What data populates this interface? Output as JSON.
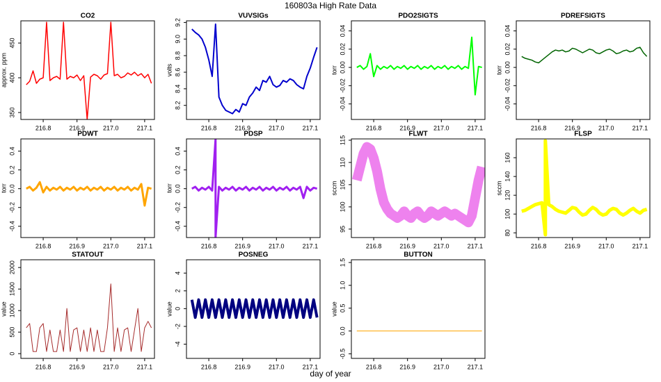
{
  "title": "160803a   High Rate Data",
  "xlabel": "day of year",
  "chart_data": [
    {
      "type": "line",
      "title": "CO2",
      "ylabel": "approx. ppm",
      "color": "#ff0000",
      "line_width": 1.5,
      "x": [
        216.75,
        216.76,
        216.77,
        216.78,
        216.79,
        216.8,
        216.81,
        216.82,
        216.83,
        216.84,
        216.85,
        216.86,
        216.87,
        216.88,
        216.89,
        216.9,
        216.91,
        216.92,
        216.93,
        216.94,
        216.95,
        216.96,
        216.97,
        216.98,
        216.99,
        217.0,
        217.01,
        217.02,
        217.03,
        217.04,
        217.05,
        217.06,
        217.07,
        217.08,
        217.09,
        217.1,
        217.11,
        217.12
      ],
      "values": [
        390,
        395,
        410,
        392,
        398,
        400,
        480,
        396,
        400,
        402,
        398,
        480,
        398,
        402,
        400,
        404,
        396,
        403,
        340,
        401,
        405,
        403,
        398,
        404,
        406,
        480,
        403,
        405,
        400,
        402,
        407,
        404,
        408,
        403,
        406,
        400,
        405,
        392
      ],
      "xlim": [
        216.734,
        217.129
      ],
      "xticks": [
        216.8,
        216.9,
        {
          "value": 217,
          "label": "217.0"
        },
        217.1
      ],
      "ylim": [
        340,
        482
      ],
      "yticks": [
        350,
        400,
        450
      ]
    },
    {
      "type": "line",
      "title": "VUVSIGs",
      "ylabel": "volts",
      "color": "#0000cd",
      "line_width": 2,
      "x": [
        216.75,
        216.76,
        216.77,
        216.78,
        216.79,
        216.8,
        216.81,
        216.82,
        216.83,
        216.84,
        216.85,
        216.86,
        216.87,
        216.88,
        216.89,
        216.9,
        216.91,
        216.92,
        216.93,
        216.94,
        216.95,
        216.96,
        216.97,
        216.98,
        216.99,
        217.0,
        217.01,
        217.02,
        217.03,
        217.04,
        217.05,
        217.06,
        217.07,
        217.08,
        217.09,
        217.1,
        217.11,
        217.12
      ],
      "values": [
        9.12,
        9.08,
        9.05,
        9.0,
        8.9,
        8.75,
        8.55,
        9.18,
        8.3,
        8.2,
        8.14,
        8.12,
        8.1,
        8.15,
        8.12,
        8.22,
        8.2,
        8.3,
        8.35,
        8.42,
        8.38,
        8.5,
        8.48,
        8.55,
        8.45,
        8.42,
        8.44,
        8.5,
        8.48,
        8.52,
        8.5,
        8.45,
        8.42,
        8.4,
        8.55,
        8.65,
        8.78,
        8.9
      ],
      "xlim": [
        216.734,
        217.129
      ],
      "xticks": [
        216.8,
        216.9,
        {
          "value": 217,
          "label": "217.0"
        },
        217.1
      ],
      "ylim": [
        8.03,
        9.22
      ],
      "yticks": [
        8.2,
        8.4,
        8.6,
        8.8,
        {
          "value": 9,
          "label": "9.0"
        },
        9.2
      ]
    },
    {
      "type": "line",
      "title": "PDO2SIGTS",
      "ylabel": "torr",
      "color": "#00ff00",
      "line_width": 2,
      "x": [
        216.75,
        216.76,
        216.77,
        216.78,
        216.79,
        216.8,
        216.81,
        216.82,
        216.83,
        216.84,
        216.85,
        216.86,
        216.87,
        216.88,
        216.89,
        216.9,
        216.91,
        216.92,
        216.93,
        216.94,
        216.95,
        216.96,
        216.97,
        216.98,
        216.99,
        217.0,
        217.01,
        217.02,
        217.03,
        217.04,
        217.05,
        217.06,
        217.07,
        217.08,
        217.09,
        217.1,
        217.11,
        217.12
      ],
      "values": [
        0,
        0.002,
        -0.002,
        0.001,
        0.015,
        -0.01,
        0.002,
        -0.002,
        0.001,
        -0.001,
        0.002,
        -0.002,
        0.001,
        -0.001,
        0.002,
        -0.002,
        0.001,
        -0.001,
        0.002,
        -0.002,
        0.001,
        -0.001,
        0.002,
        -0.002,
        0.001,
        -0.001,
        0.002,
        -0.002,
        0.001,
        -0.001,
        0.002,
        -0.002,
        0.001,
        -0.001,
        0.033,
        -0.03,
        0.001,
        0
      ],
      "xlim": [
        216.734,
        217.129
      ],
      "xticks": [
        216.8,
        216.9,
        {
          "value": 217,
          "label": "217.0"
        },
        217.1
      ],
      "ylim": [
        -0.057,
        0.051
      ],
      "yticks": [
        -0.04,
        -0.02,
        {
          "value": 0,
          "label": "0.00"
        },
        0.02,
        0.04
      ]
    },
    {
      "type": "line",
      "title": "PDREFSIGTS",
      "ylabel": "torr",
      "color": "#006400",
      "line_width": 1.5,
      "x": [
        216.75,
        216.76,
        216.77,
        216.78,
        216.79,
        216.8,
        216.81,
        216.82,
        216.83,
        216.84,
        216.85,
        216.86,
        216.87,
        216.88,
        216.89,
        216.9,
        216.91,
        216.92,
        216.93,
        216.94,
        216.95,
        216.96,
        216.97,
        216.98,
        216.99,
        217.0,
        217.01,
        217.02,
        217.03,
        217.04,
        217.05,
        217.06,
        217.07,
        217.08,
        217.09,
        217.1,
        217.11,
        217.12
      ],
      "values": [
        0.012,
        0.01,
        0.009,
        0.008,
        0.006,
        0.005,
        0.008,
        0.011,
        0.014,
        0.017,
        0.019,
        0.018,
        0.019,
        0.017,
        0.018,
        0.021,
        0.02,
        0.018,
        0.016,
        0.018,
        0.02,
        0.019,
        0.016,
        0.015,
        0.017,
        0.019,
        0.02,
        0.018,
        0.015,
        0.016,
        0.018,
        0.019,
        0.017,
        0.018,
        0.021,
        0.022,
        0.016,
        0.012
      ],
      "xlim": [
        216.734,
        217.129
      ],
      "xticks": [
        216.8,
        216.9,
        {
          "value": 217,
          "label": "217.0"
        },
        217.1
      ],
      "ylim": [
        -0.057,
        0.051
      ],
      "yticks": [
        -0.04,
        -0.02,
        {
          "value": 0,
          "label": "0.00"
        },
        0.02,
        0.04
      ]
    },
    {
      "type": "line",
      "title": "PDWT",
      "ylabel": "torr",
      "color": "#ffa500",
      "line_width": 3,
      "x": [
        216.75,
        216.76,
        216.77,
        216.78,
        216.79,
        216.8,
        216.81,
        216.82,
        216.83,
        216.84,
        216.85,
        216.86,
        216.87,
        216.88,
        216.89,
        216.9,
        216.91,
        216.92,
        216.93,
        216.94,
        216.95,
        216.96,
        216.97,
        216.98,
        216.99,
        217.0,
        217.01,
        217.02,
        217.03,
        217.04,
        217.05,
        217.06,
        217.07,
        217.08,
        217.09,
        217.1,
        217.11,
        217.12
      ],
      "values": [
        0,
        0.02,
        -0.02,
        0.01,
        0.07,
        -0.04,
        0.02,
        -0.02,
        0.01,
        -0.01,
        0.02,
        -0.02,
        0.01,
        -0.01,
        0.02,
        -0.02,
        0.01,
        -0.01,
        0.02,
        -0.02,
        0.01,
        -0.01,
        0.02,
        -0.02,
        0.01,
        -0.01,
        0.02,
        -0.02,
        0.01,
        -0.01,
        0.02,
        -0.02,
        0.01,
        -0.01,
        0.05,
        -0.18,
        0.01,
        0
      ],
      "xlim": [
        216.734,
        217.129
      ],
      "xticks": [
        216.8,
        216.9,
        {
          "value": 217,
          "label": "217.0"
        },
        217.1
      ],
      "ylim": [
        -0.52,
        0.53
      ],
      "yticks": [
        -0.4,
        -0.2,
        {
          "value": 0,
          "label": "0.0"
        },
        0.2,
        0.4
      ]
    },
    {
      "type": "line",
      "title": "PDSP",
      "ylabel": "torr",
      "color": "#a020f0",
      "line_width": 3,
      "x": [
        216.75,
        216.76,
        216.77,
        216.78,
        216.79,
        216.8,
        216.81,
        216.82,
        216.82,
        216.83,
        216.84,
        216.85,
        216.86,
        216.87,
        216.88,
        216.89,
        216.9,
        216.91,
        216.92,
        216.93,
        216.94,
        216.95,
        216.96,
        216.97,
        216.98,
        216.99,
        217.0,
        217.01,
        217.02,
        217.03,
        217.04,
        217.05,
        217.06,
        217.07,
        217.08,
        217.09,
        217.1,
        217.11,
        217.12
      ],
      "values": [
        0,
        0.02,
        -0.02,
        0.01,
        -0.01,
        0.02,
        -0.02,
        0.53,
        -0.52,
        0.02,
        -0.02,
        0.01,
        -0.01,
        0.02,
        -0.02,
        0.01,
        -0.01,
        0.02,
        -0.02,
        0.01,
        -0.01,
        0.02,
        -0.02,
        0.01,
        -0.01,
        0.02,
        -0.02,
        0.01,
        -0.01,
        0.02,
        -0.02,
        0.01,
        -0.01,
        0.02,
        -0.1,
        0.02,
        -0.02,
        0.01,
        0
      ],
      "xlim": [
        216.734,
        217.129
      ],
      "xticks": [
        216.8,
        216.9,
        {
          "value": 217,
          "label": "217.0"
        },
        217.1
      ],
      "ylim": [
        -0.52,
        0.53
      ],
      "yticks": [
        -0.4,
        -0.2,
        {
          "value": 0,
          "label": "0.0"
        },
        0.2,
        0.4
      ]
    },
    {
      "type": "line",
      "title": "FLWT",
      "ylabel": "sccm",
      "color": "#ee82ee",
      "line_width": 14,
      "x": [
        216.75,
        216.76,
        216.77,
        216.78,
        216.79,
        216.8,
        216.81,
        216.82,
        216.83,
        216.84,
        216.85,
        216.86,
        216.87,
        216.88,
        216.89,
        216.9,
        216.91,
        216.92,
        216.93,
        216.94,
        216.95,
        216.96,
        216.97,
        216.98,
        216.99,
        217.0,
        217.01,
        217.02,
        217.03,
        217.04,
        217.05,
        217.06,
        217.07,
        217.08,
        217.09,
        217.1,
        217.11,
        217.12
      ],
      "values": [
        106,
        109,
        112,
        113.5,
        113,
        111,
        108,
        104,
        101,
        99.5,
        98.5,
        98,
        97.5,
        98,
        99,
        98,
        97.5,
        98.5,
        99,
        98,
        97.5,
        98,
        99,
        98.5,
        98,
        98.5,
        99,
        98.5,
        98,
        98.5,
        98,
        97.5,
        97,
        96.5,
        98,
        102,
        106,
        109
      ],
      "xlim": [
        216.734,
        217.129
      ],
      "xticks": [
        216.8,
        216.9,
        {
          "value": 217,
          "label": "217.0"
        },
        217.1
      ],
      "ylim": [
        93.1,
        115.3
      ],
      "yticks": [
        95,
        100,
        105,
        110,
        115
      ]
    },
    {
      "type": "line",
      "title": "FLSP",
      "ylabel": "sccm",
      "color": "#ffff00",
      "line_width": 5,
      "x": [
        216.75,
        216.76,
        216.77,
        216.78,
        216.79,
        216.8,
        216.81,
        216.82,
        216.82,
        216.83,
        216.84,
        216.85,
        216.86,
        216.87,
        216.88,
        216.89,
        216.9,
        216.91,
        216.92,
        216.93,
        216.94,
        216.95,
        216.96,
        216.97,
        216.98,
        216.99,
        217.0,
        217.01,
        217.02,
        217.03,
        217.04,
        217.05,
        217.06,
        217.07,
        217.08,
        217.09,
        217.1,
        217.11,
        217.12
      ],
      "values": [
        103,
        104,
        106,
        108,
        110,
        111,
        112,
        78,
        178,
        110,
        108,
        105,
        103,
        102,
        101,
        104,
        107,
        106,
        102,
        99,
        100,
        104,
        107,
        105,
        101,
        99,
        100,
        104,
        106,
        105,
        101,
        99,
        101,
        104,
        106,
        103,
        101,
        104,
        105
      ],
      "xlim": [
        216.734,
        217.129
      ],
      "xticks": [
        216.8,
        216.9,
        {
          "value": 217,
          "label": "217.0"
        },
        217.1
      ],
      "ylim": [
        75,
        180
      ],
      "yticks": [
        80,
        100,
        120,
        140,
        160
      ]
    },
    {
      "type": "line",
      "title": "STATOUT",
      "ylabel": "value",
      "color": "#a52a2a",
      "line_width": 1,
      "x": [
        216.75,
        216.76,
        216.77,
        216.78,
        216.79,
        216.8,
        216.81,
        216.82,
        216.83,
        216.84,
        216.85,
        216.86,
        216.87,
        216.88,
        216.89,
        216.9,
        216.91,
        216.92,
        216.93,
        216.94,
        216.95,
        216.96,
        216.97,
        216.98,
        216.99,
        217.0,
        217.01,
        217.02,
        217.03,
        217.04,
        217.05,
        217.06,
        217.07,
        217.08,
        217.09,
        217.1,
        217.11,
        217.12
      ],
      "values": [
        600,
        700,
        50,
        50,
        600,
        700,
        50,
        550,
        50,
        50,
        550,
        50,
        1050,
        50,
        550,
        600,
        50,
        550,
        50,
        600,
        50,
        550,
        50,
        50,
        600,
        1620,
        50,
        600,
        50,
        550,
        600,
        50,
        550,
        1050,
        50,
        600,
        750,
        600
      ],
      "xlim": [
        216.734,
        217.129
      ],
      "xticks": [
        216.8,
        216.9,
        {
          "value": 217,
          "label": "217.0"
        },
        217.1
      ],
      "ylim": [
        -110,
        2180
      ],
      "yticks": [
        0,
        500,
        1000,
        1500,
        2000
      ]
    },
    {
      "type": "line",
      "title": "POSNEG",
      "ylabel": "value",
      "color": "#000080",
      "line_width": 4,
      "x": [
        216.75,
        216.76,
        216.77,
        216.78,
        216.79,
        216.8,
        216.81,
        216.82,
        216.83,
        216.84,
        216.85,
        216.86,
        216.87,
        216.88,
        216.89,
        216.9,
        216.91,
        216.92,
        216.93,
        216.94,
        216.95,
        216.96,
        216.97,
        216.98,
        216.99,
        217.0,
        217.01,
        217.02,
        217.03,
        217.04,
        217.05,
        217.06,
        217.07,
        217.08,
        217.09,
        217.1,
        217.11,
        217.12
      ],
      "values": [
        1,
        -1,
        1,
        -1,
        1,
        -1,
        1,
        -1,
        1,
        -1,
        1,
        -1,
        1,
        -1,
        1,
        -1,
        1,
        -1,
        1,
        -1,
        1,
        -1,
        1,
        -1,
        1,
        -1,
        1,
        -1,
        1,
        -1,
        1,
        -1,
        1,
        -1,
        1,
        -1,
        1,
        -1
      ],
      "xlim": [
        216.734,
        217.129
      ],
      "xticks": [
        216.8,
        216.9,
        {
          "value": 217,
          "label": "217.0"
        },
        217.1
      ],
      "ylim": [
        -5.6,
        5.5
      ],
      "yticks": [
        -4,
        -2,
        0,
        2,
        4
      ]
    },
    {
      "type": "line",
      "title": "BUTTON",
      "ylabel": "value",
      "color": "#ffa500",
      "line_width": 1,
      "x": [
        216.75,
        216.76,
        216.77,
        216.78,
        216.79,
        216.8,
        216.81,
        216.82,
        216.83,
        216.84,
        216.85,
        216.86,
        216.87,
        216.88,
        216.89,
        216.9,
        216.91,
        216.92,
        216.93,
        216.94,
        216.95,
        216.96,
        216.97,
        216.98,
        216.99,
        217.0,
        217.01,
        217.02,
        217.03,
        217.04,
        217.05,
        217.06,
        217.07,
        217.08,
        217.09,
        217.1,
        217.11,
        217.12
      ],
      "values": [
        0,
        0,
        0,
        0,
        0,
        0,
        0,
        0,
        0,
        0,
        0,
        0,
        0,
        0,
        0,
        0,
        0,
        0,
        0,
        0,
        0,
        0,
        0,
        0,
        0,
        0,
        0,
        0,
        0,
        0,
        0,
        0,
        0,
        0,
        0,
        0,
        0,
        0
      ],
      "xlim": [
        216.734,
        217.129
      ],
      "xticks": [
        216.8,
        216.9,
        {
          "value": 217,
          "label": "217.0"
        },
        217.1
      ],
      "ylim": [
        -0.6,
        1.56
      ],
      "yticks": [
        -0.5,
        {
          "value": 0,
          "label": "0.0"
        },
        0.5,
        {
          "value": 1,
          "label": "1.0"
        },
        1.5
      ]
    }
  ]
}
